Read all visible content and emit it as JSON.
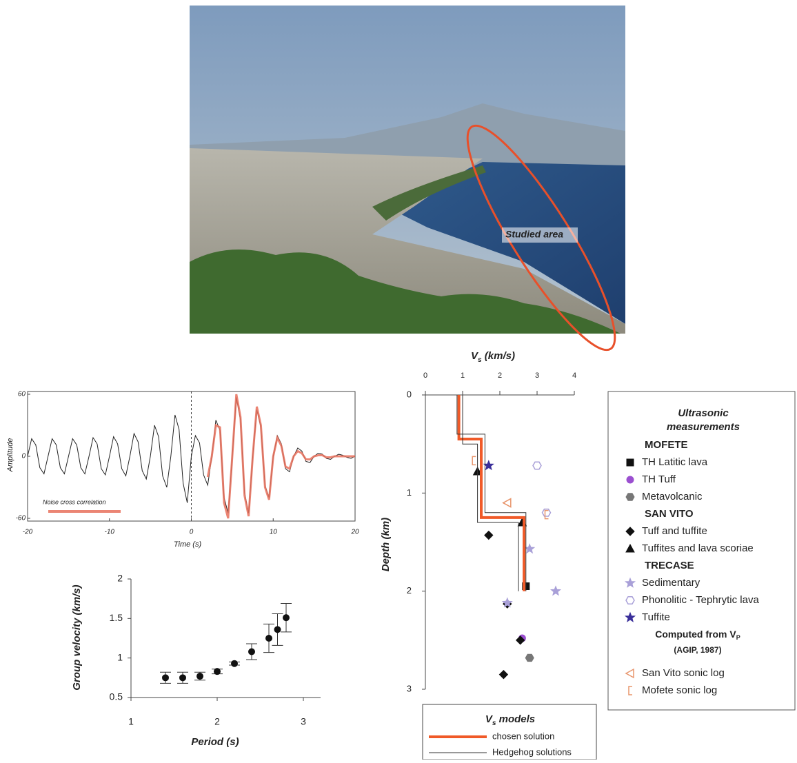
{
  "photo": {
    "annotation": "Studied area"
  },
  "chart_data": [
    {
      "type": "line",
      "x_label": "Time (s)",
      "y_label": "Amplitude",
      "xlim": [
        -20,
        20
      ],
      "xticks": [
        -20,
        -10,
        0,
        10,
        20
      ],
      "ylim": [
        -60,
        60
      ],
      "yticks": [
        60,
        0,
        -60
      ],
      "x": [
        -20,
        -19.5,
        -19,
        -18.5,
        -18,
        -17.5,
        -17,
        -16.5,
        -16,
        -15.5,
        -15,
        -14.5,
        -14,
        -13.5,
        -13,
        -12.5,
        -12,
        -11.5,
        -11,
        -10.5,
        -10,
        -9.5,
        -9,
        -8.5,
        -8,
        -7.5,
        -7,
        -6.5,
        -6,
        -5.5,
        -5,
        -4.5,
        -4,
        -3.5,
        -3,
        -2.5,
        -2,
        -1.5,
        -1,
        -0.5,
        0,
        0.5,
        1,
        1.5,
        2,
        2.5,
        3,
        3.5,
        4,
        4.5,
        5,
        5.5,
        6,
        6.5,
        7,
        7.5,
        8,
        8.5,
        9,
        9.5,
        10,
        10.5,
        11,
        11.5,
        12,
        12.5,
        13,
        13.5,
        14,
        14.5,
        15,
        15.5,
        16,
        16.5,
        17,
        17.5,
        18,
        18.5,
        19,
        19.5,
        20
      ],
      "series": [
        {
          "color": "#222222",
          "values": [
            0,
            17,
            11,
            -11,
            -17,
            0,
            17,
            11,
            -11,
            -17,
            0,
            17,
            11,
            -11,
            -17,
            0,
            18,
            12,
            -12,
            -18,
            0,
            19,
            12,
            -12,
            -19,
            0,
            22,
            14,
            -14,
            -22,
            0,
            30,
            19,
            -19,
            -30,
            0,
            40,
            26,
            -26,
            -45,
            0,
            20,
            13,
            -18,
            -28,
            0,
            35,
            25,
            -40,
            -55,
            0,
            57,
            35,
            -35,
            -55,
            0,
            45,
            28,
            -28,
            -40,
            0,
            20,
            12,
            -12,
            -15,
            0,
            8,
            5,
            -5,
            -6,
            0,
            3,
            2,
            -2,
            -3,
            0,
            2,
            1,
            -1,
            -2,
            0
          ]
        },
        {
          "name": "Noise cross correlation",
          "color": "#e8705c",
          "values": [
            null,
            null,
            null,
            null,
            null,
            null,
            null,
            null,
            null,
            null,
            null,
            null,
            null,
            null,
            null,
            null,
            null,
            null,
            null,
            null,
            null,
            null,
            null,
            null,
            null,
            null,
            null,
            null,
            null,
            null,
            null,
            null,
            null,
            null,
            null,
            null,
            null,
            null,
            null,
            null,
            null,
            null,
            null,
            null,
            -20,
            0,
            30,
            28,
            -45,
            -60,
            0,
            60,
            38,
            -38,
            -58,
            0,
            48,
            30,
            -30,
            -42,
            0,
            18,
            10,
            -10,
            -12,
            0,
            5,
            3,
            -3,
            -3,
            0,
            1,
            1,
            -1,
            -1,
            0,
            0,
            0,
            0,
            0,
            0
          ]
        }
      ]
    },
    {
      "type": "scatter",
      "x_label": "Period (s)",
      "y_label": "Group velocity (km/s)",
      "xlim": [
        1,
        3.2
      ],
      "xticks": [
        1,
        2,
        3
      ],
      "ylim": [
        0.5,
        2
      ],
      "yticks": [
        0.5,
        1,
        1.5,
        2
      ],
      "color": "#111111",
      "x": [
        1.4,
        1.6,
        1.8,
        2,
        2.2,
        2.4,
        2.6,
        2.7,
        2.8
      ],
      "values": [
        0.75,
        0.75,
        0.77,
        0.83,
        0.93,
        1.08,
        1.25,
        1.36,
        1.51
      ],
      "errors": [
        0.07,
        0.07,
        0.05,
        0.03,
        0.02,
        0.1,
        0.18,
        0.2,
        0.18
      ]
    },
    {
      "type": "profile",
      "x_label": {
        "text": "V",
        "sub": "s",
        "rest": " (km/s)"
      },
      "y_label": "Depth (km)",
      "xlim": [
        0,
        4
      ],
      "xticks": [
        0,
        1,
        2,
        3,
        4
      ],
      "ylim": [
        0,
        3
      ],
      "yticks": [
        0,
        1,
        2,
        3
      ],
      "y_inverted": true,
      "models_title": {
        "text": "V",
        "sub": "s",
        "rest": " models"
      },
      "models": [
        {
          "name": "chosen solution",
          "color": "#f05a28",
          "x": [
            0.9,
            0.9,
            1.5,
            1.5,
            2.65,
            2.65
          ],
          "values": [
            0,
            0.45,
            0.45,
            1.25,
            1.25,
            2.0
          ]
        },
        {
          "name": "Hedgehog solutions",
          "color": "#333333",
          "paths": [
            {
              "x": [
                1,
                1,
                1.4,
                1.4,
                2.5,
                2.5
              ],
              "values": [
                0,
                0.5,
                0.5,
                1.3,
                1.3,
                2.0
              ]
            },
            {
              "x": [
                0.85,
                0.85,
                1.6,
                1.6,
                2.7,
                2.7
              ],
              "values": [
                0,
                0.4,
                0.4,
                1.2,
                1.2,
                2.0
              ]
            }
          ]
        }
      ],
      "legend_title": [
        "Ultrasonic",
        "measurements"
      ],
      "groups": [
        {
          "name": "MOFETE",
          "series": [
            {
              "name": "TH Latitic lava",
              "marker": "square",
              "color": "#111111",
              "x": [
                2.7
              ],
              "values": [
                1.95
              ]
            },
            {
              "name": "TH Tuff",
              "marker": "circle",
              "color": "#9b4fd0",
              "x": [
                2.6
              ],
              "values": [
                2.48
              ]
            },
            {
              "name": "Metavolcanic",
              "marker": "hexagon",
              "color": "#777777",
              "x": [
                2.8
              ],
              "values": [
                2.68
              ]
            }
          ]
        },
        {
          "name": "SAN VITO",
          "series": [
            {
              "name": "Tuff and tuffite",
              "marker": "diamond",
              "color": "#111111",
              "x": [
                1.7,
                2.2,
                2.55,
                2.1
              ],
              "values": [
                1.43,
                2.13,
                2.5,
                2.85
              ]
            },
            {
              "name": "Tuffites and lava scoriae",
              "marker": "triangle",
              "color": "#111111",
              "x": [
                1.4,
                2.6
              ],
              "values": [
                0.78,
                1.3
              ]
            }
          ]
        },
        {
          "name": "TRECASE",
          "series": [
            {
              "name": "Sedimentary",
              "marker": "star",
              "color": "#a9a0d8",
              "x": [
                2.8,
                3.5,
                2.2
              ],
              "values": [
                1.57,
                2.0,
                2.12
              ]
            },
            {
              "name": "Phonolitic - Tephrytic lava",
              "marker": "hexagon-open",
              "color": "#a9a0d8",
              "x": [
                3,
                3.25
              ],
              "values": [
                0.72,
                1.2
              ]
            },
            {
              "name": "Tuffite",
              "marker": "star",
              "color": "#3a2f9a",
              "x": [
                1.7
              ],
              "values": [
                0.72
              ]
            }
          ]
        },
        {
          "name": "Computed from V",
          "name_sub": "P",
          "note": "(AGIP, 1987)",
          "series": [
            {
              "name": "San Vito sonic log",
              "marker": "triangle-left",
              "color": "#e8956c",
              "x": [
                2.2
              ],
              "values": [
                1.1
              ]
            },
            {
              "name": "Mofete sonic log",
              "marker": "bracket",
              "color": "#e8956c",
              "x": [
                1.3,
                3.25
              ],
              "values": [
                0.67,
                1.22
              ]
            }
          ]
        }
      ]
    }
  ]
}
